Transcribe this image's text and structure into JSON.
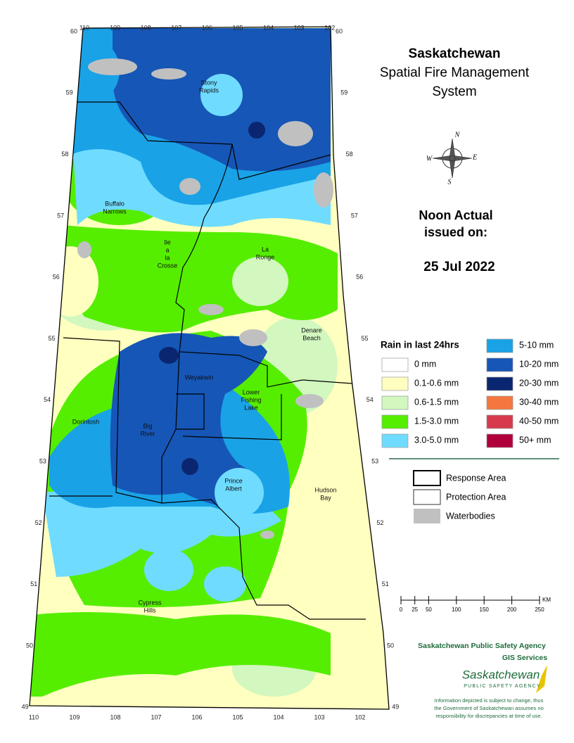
{
  "title": [
    "Saskatchewan",
    "Spatial Fire Management",
    "System"
  ],
  "issue": {
    "heading": [
      "Noon Actual",
      "issued on:"
    ],
    "date": "25 Jul 2022"
  },
  "compass": [
    "N",
    "E",
    "S",
    "W"
  ],
  "rain_legend": {
    "title": "Rain in last 24hrs",
    "items": [
      {
        "label": "0 mm",
        "color": "#ffffff"
      },
      {
        "label": "0.1-0.6 mm",
        "color": "#ffffc0"
      },
      {
        "label": "0.6-1.5 mm",
        "color": "#d2f7bf"
      },
      {
        "label": "1.5-3.0 mm",
        "color": "#55ee00"
      },
      {
        "label": "3.0-5.0 mm",
        "color": "#6fdcff"
      },
      {
        "label": "5-10 mm",
        "color": "#1aa2e6"
      },
      {
        "label": "10-20 mm",
        "color": "#1656b6"
      },
      {
        "label": "20-30 mm",
        "color": "#0b2670"
      },
      {
        "label": "30-40 mm",
        "color": "#f4773f"
      },
      {
        "label": "40-50 mm",
        "color": "#d63a4c"
      },
      {
        "label": "50+ mm",
        "color": "#b0003c"
      }
    ]
  },
  "area_legend": [
    "Response Area",
    "Protection Area",
    "Waterbodies"
  ],
  "scale": {
    "ticks": [
      0,
      25,
      50,
      100,
      150,
      200,
      250
    ],
    "unit": "KM"
  },
  "agency": {
    "name": "Saskatchewan Public Safety Agency",
    "unit": "GIS Services",
    "logo": "Saskatchewan",
    "logo_sub": "PUBLIC SAFETY AGENCY",
    "disclaimer": [
      "Information depicted is subject to change, thus",
      "the Government of Saskatchewan assumes no",
      "responsibility for discrepancies at time of use."
    ]
  },
  "graticule": {
    "latitudes": [
      60,
      59,
      58,
      57,
      56,
      55,
      54,
      53,
      52,
      51,
      50,
      49
    ],
    "longitudes": [
      110,
      109,
      108,
      107,
      106,
      105,
      104,
      103,
      102
    ]
  },
  "places": [
    [
      "Stony",
      "Rapids"
    ],
    [
      "Buffalo",
      "Narrows"
    ],
    [
      "Ile",
      "a",
      "la",
      "Crosse"
    ],
    [
      "La",
      "Ronge"
    ],
    [
      "Denare",
      "Beach"
    ],
    [
      "Weyakwin"
    ],
    [
      "Lower",
      "Fishing",
      "Lake"
    ],
    [
      "Dorintosh"
    ],
    [
      "Big",
      "River"
    ],
    [
      "Prince",
      "Albert"
    ],
    [
      "Hudson",
      "Bay"
    ],
    [
      "Cypress",
      "Hills"
    ]
  ]
}
